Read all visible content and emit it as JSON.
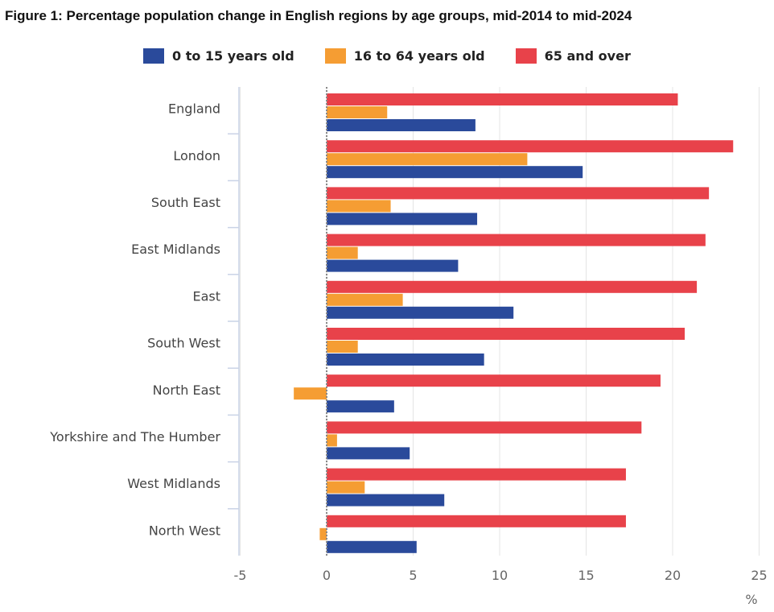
{
  "chart_data": {
    "type": "bar",
    "orientation": "horizontal",
    "title": "Figure 1: Percentage population change in English regions by age groups, mid-2014 to mid-2024",
    "categories": [
      "England",
      "London",
      "South East",
      "East Midlands",
      "East",
      "South West",
      "North East",
      "Yorkshire and The Humber",
      "West Midlands",
      "North West"
    ],
    "series": [
      {
        "name": "65 and over",
        "color": "#e8424a",
        "values": [
          20.3,
          23.5,
          22.1,
          21.9,
          21.4,
          20.7,
          19.3,
          18.2,
          17.3,
          17.3
        ]
      },
      {
        "name": "16 to 64 years old",
        "color": "#f59d33",
        "values": [
          3.5,
          11.6,
          3.7,
          1.8,
          4.4,
          1.8,
          -1.9,
          0.6,
          2.2,
          -0.4
        ]
      },
      {
        "name": "0 to 15 years old",
        "color": "#2a4a9b",
        "values": [
          8.6,
          14.8,
          8.7,
          7.6,
          10.8,
          9.1,
          3.9,
          4.8,
          6.8,
          5.2
        ]
      }
    ],
    "legend": [
      {
        "name": "0 to 15 years old",
        "color": "#2a4a9b"
      },
      {
        "name": "16 to 64 years old",
        "color": "#f59d33"
      },
      {
        "name": "65 and over",
        "color": "#e8424a"
      }
    ],
    "xticks": [
      "-5",
      "0",
      "5",
      "10",
      "15",
      "20",
      "25"
    ],
    "xlim": [
      -5,
      25
    ],
    "xlabel": "%",
    "ylabel": "",
    "grid": true,
    "legend_position": "top"
  }
}
